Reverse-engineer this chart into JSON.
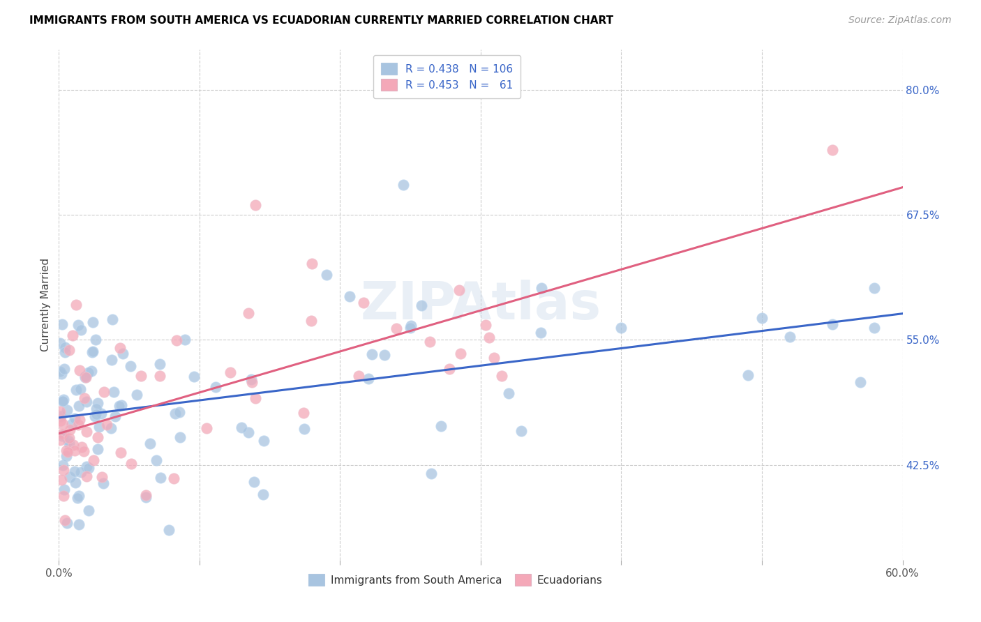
{
  "title": "IMMIGRANTS FROM SOUTH AMERICA VS ECUADORIAN CURRENTLY MARRIED CORRELATION CHART",
  "source": "Source: ZipAtlas.com",
  "ylabel": "Currently Married",
  "yticks": [
    0.425,
    0.55,
    0.675,
    0.8
  ],
  "ytick_labels": [
    "42.5%",
    "55.0%",
    "67.5%",
    "80.0%"
  ],
  "xmin": 0.0,
  "xmax": 0.6,
  "ymin": 0.33,
  "ymax": 0.84,
  "blue_R": "0.438",
  "blue_N": "106",
  "pink_R": "0.453",
  "pink_N": "61",
  "blue_color": "#a8c4e0",
  "pink_color": "#f4a8b8",
  "blue_line_color": "#3a66c8",
  "pink_line_color": "#e06080",
  "legend_text_color": "#3a66c8",
  "ytick_color": "#3a66c8",
  "title_fontsize": 11,
  "source_fontsize": 10,
  "tick_fontsize": 11,
  "legend_fontsize": 11,
  "ylabel_fontsize": 11
}
